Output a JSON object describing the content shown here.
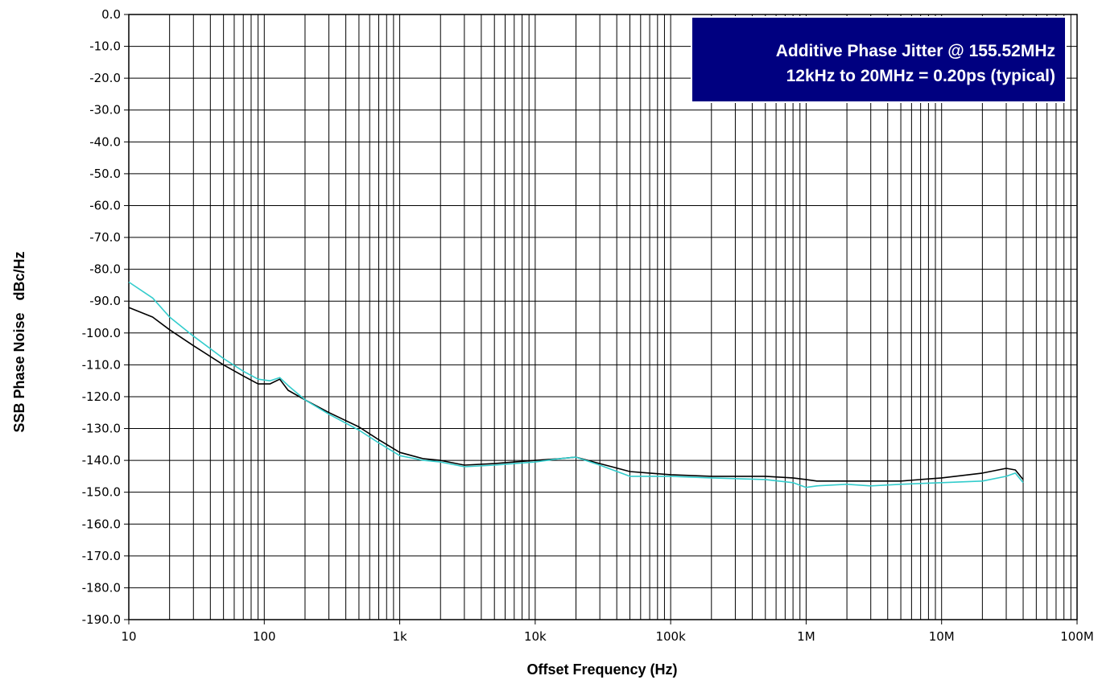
{
  "chart_data": {
    "type": "line",
    "xscale": "log",
    "xlim": [
      10,
      100000000
    ],
    "ylim": [
      -190,
      0
    ],
    "xlabel": "Offset Frequency (Hz)",
    "ylabel": "SSB Phase Noise   dBc/Hz",
    "x_ticks": [
      {
        "value": 10,
        "label": "10"
      },
      {
        "value": 100,
        "label": "100"
      },
      {
        "value": 1000,
        "label": "1k"
      },
      {
        "value": 10000,
        "label": "10k"
      },
      {
        "value": 100000,
        "label": "100k"
      },
      {
        "value": 1000000,
        "label": "1M"
      },
      {
        "value": 10000000,
        "label": "10M"
      },
      {
        "value": 100000000,
        "label": "100M"
      }
    ],
    "y_ticks": [
      0,
      -10,
      -20,
      -30,
      -40,
      -50,
      -60,
      -70,
      -80,
      -90,
      -100,
      -110,
      -120,
      -130,
      -140,
      -150,
      -160,
      -170,
      -180,
      -190
    ],
    "y_tick_labels": [
      "0.0",
      "-10.0",
      "-20.0",
      "-30.0",
      "-40.0",
      "-50.0",
      "-60.0",
      "-70.0",
      "-80.0",
      "-90.0",
      "-100.0",
      "-110.0",
      "-120.0",
      "-130.0",
      "-140.0",
      "-150.0",
      "-160.0",
      "-170.0",
      "-180.0",
      "-190.0"
    ],
    "grid": true,
    "annotation": {
      "line1": "Additive Phase Jitter @ 155.52MHz",
      "line2": "12kHz to 20MHz = 0.20ps (typical)"
    },
    "series": [
      {
        "color": "#000000",
        "x": [
          10,
          15,
          20,
          30,
          50,
          70,
          90,
          110,
          130,
          150,
          200,
          300,
          500,
          700,
          1000,
          1500,
          2000,
          3000,
          5000,
          7000,
          10000,
          15000,
          20000,
          30000,
          50000,
          70000,
          100000,
          200000,
          500000,
          800000,
          1000000,
          1200000,
          2000000,
          3000000,
          5000000,
          10000000,
          20000000,
          30000000,
          35000000,
          40000000
        ],
        "y": [
          -92,
          -95,
          -99,
          -104,
          -110,
          -113.5,
          -116,
          -116,
          -114.5,
          -118,
          -121,
          -125,
          -129.5,
          -133.5,
          -137.5,
          -139.5,
          -140,
          -141.5,
          -141,
          -140.5,
          -140,
          -139.5,
          -139,
          -141,
          -143.5,
          -144,
          -144.5,
          -145,
          -145,
          -145.5,
          -146,
          -146.5,
          -146.5,
          -146.5,
          -146.5,
          -145.5,
          -144,
          -142.5,
          -143,
          -146
        ]
      },
      {
        "color": "#33cccc",
        "x": [
          10,
          15,
          20,
          30,
          50,
          70,
          90,
          110,
          130,
          150,
          200,
          300,
          500,
          700,
          1000,
          1500,
          2000,
          3000,
          5000,
          7000,
          10000,
          15000,
          20000,
          30000,
          50000,
          70000,
          100000,
          200000,
          500000,
          800000,
          1000000,
          1200000,
          2000000,
          3000000,
          5000000,
          10000000,
          20000000,
          30000000,
          35000000,
          40000000
        ],
        "y": [
          -84,
          -89,
          -95,
          -101,
          -108,
          -112,
          -114.5,
          -115,
          -114,
          -116.5,
          -121,
          -125.5,
          -130.5,
          -134.5,
          -138.5,
          -140,
          -140.5,
          -142,
          -141.5,
          -141,
          -140.5,
          -139.5,
          -139,
          -141.5,
          -145,
          -145,
          -145,
          -145.5,
          -146,
          -147,
          -148.5,
          -148,
          -147.5,
          -148,
          -147.5,
          -147,
          -146.5,
          -145,
          -144,
          -147
        ]
      }
    ]
  }
}
